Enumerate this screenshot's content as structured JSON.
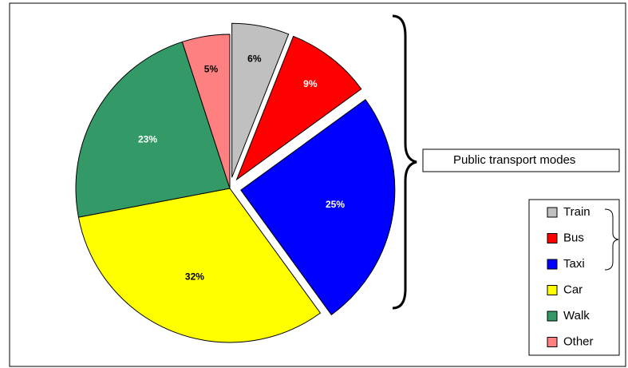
{
  "chart_data": {
    "type": "pie",
    "categories": [
      "Train",
      "Bus",
      "Taxi",
      "Car",
      "Walk",
      "Other"
    ],
    "values": [
      6,
      9,
      25,
      32,
      23,
      5
    ],
    "value_labels": [
      "6%",
      "9%",
      "25%",
      "32%",
      "23%",
      "5%"
    ],
    "colors": [
      "#c0c0c0",
      "#ff0000",
      "#0000ff",
      "#ffff00",
      "#339966",
      "#ff8080"
    ],
    "exploded": [
      true,
      true,
      true,
      false,
      false,
      false
    ],
    "annotation": "Public transport modes",
    "legend": "right"
  }
}
